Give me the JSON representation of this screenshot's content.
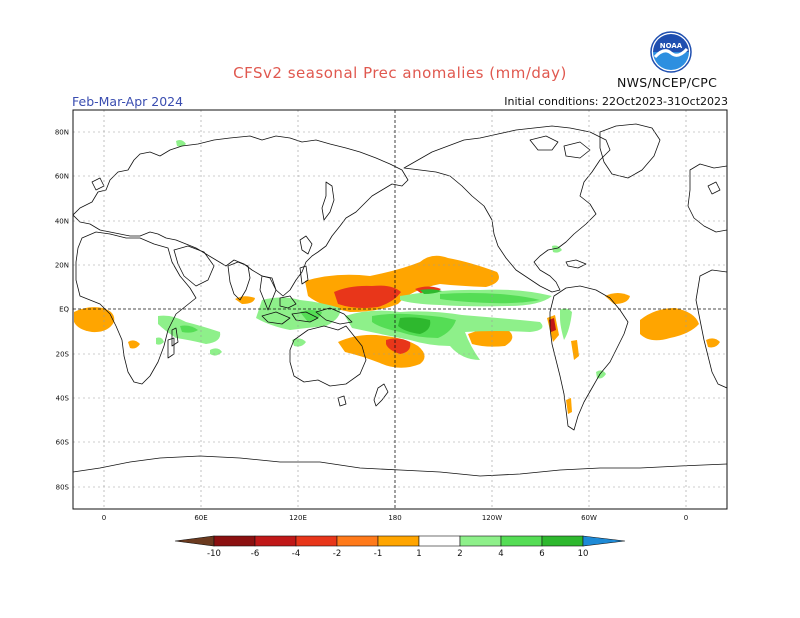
{
  "header": {
    "title": "CFSv2 seasonal Prec anomalies (mm/day)",
    "period": "Feb-Mar-Apr 2024",
    "initial_conditions": "Initial conditions: 22Oct2023-31Oct2023",
    "agency": "NWS/NCEP/CPC",
    "logo_text": "NOAA"
  },
  "map": {
    "lat_labels": [
      "80N",
      "60N",
      "40N",
      "20N",
      "EQ",
      "20S",
      "40S",
      "60S",
      "80S"
    ],
    "lon_labels": [
      "0",
      "60E",
      "120E",
      "180",
      "120W",
      "60W",
      "0"
    ]
  },
  "colorbar": {
    "labels": [
      "-10",
      "-6",
      "-4",
      "-2",
      "-1",
      "1",
      "2",
      "4",
      "6",
      "10"
    ],
    "colors": [
      "#6b3a1f",
      "#8b1010",
      "#c01818",
      "#e8361a",
      "#ff7a1a",
      "#ffa500",
      "#ffffff",
      "#8ef08a",
      "#55dd55",
      "#2eb82e",
      "#0e9a0e",
      "#1e8ad6"
    ]
  }
}
